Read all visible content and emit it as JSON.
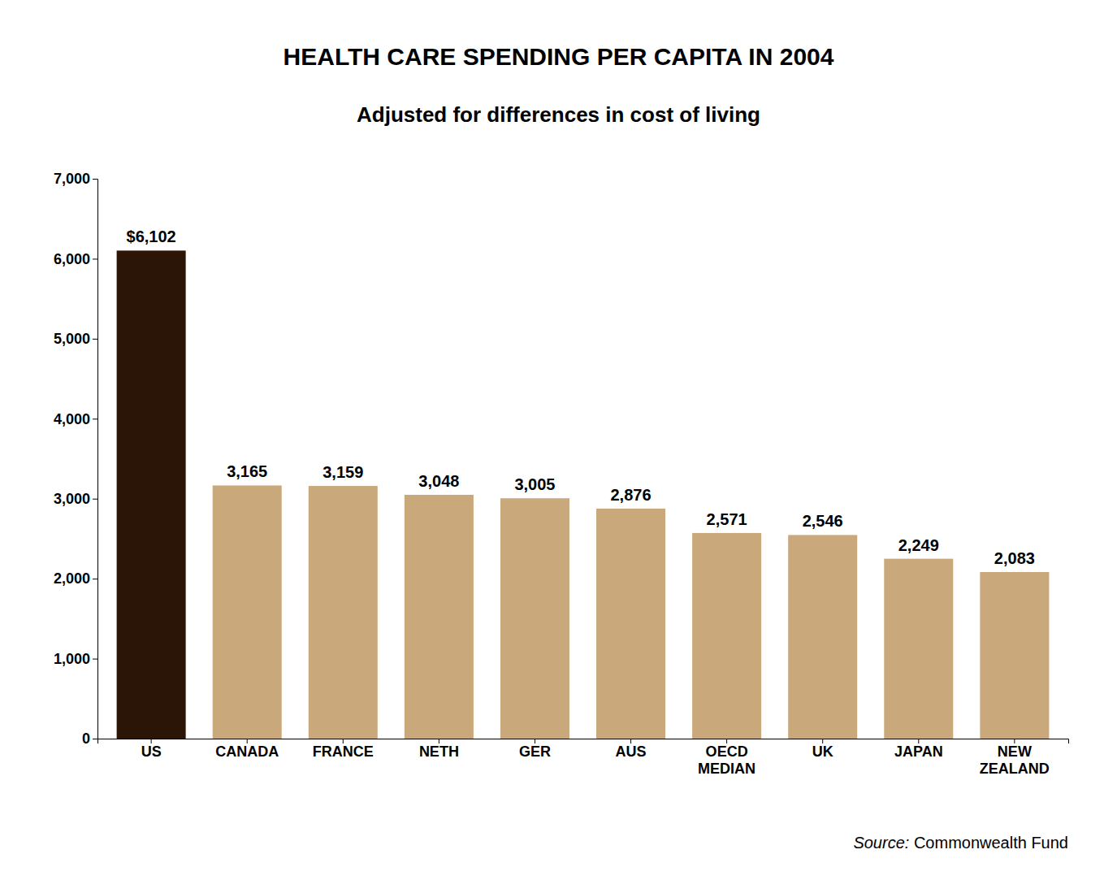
{
  "chart_data": {
    "type": "bar",
    "title": "HEALTH CARE SPENDING PER CAPITA IN 2004",
    "subtitle": "Adjusted for differences in cost of living",
    "categories": [
      "US",
      "CANADA",
      "FRANCE",
      "NETH",
      "GER",
      "AUS",
      "OECD\nMEDIAN",
      "UK",
      "JAPAN",
      "NEW\nZEALAND"
    ],
    "values": [
      6102,
      3165,
      3159,
      3048,
      3005,
      2876,
      2571,
      2546,
      2249,
      2083
    ],
    "value_labels": [
      "$6,102",
      "3,165",
      "3,159",
      "3,048",
      "3,005",
      "2,876",
      "2,571",
      "2,546",
      "2,249",
      "2,083"
    ],
    "colors": [
      "#2b1507",
      "#c9a87c",
      "#c9a87c",
      "#c9a87c",
      "#c9a87c",
      "#c9a87c",
      "#c9a87c",
      "#c9a87c",
      "#c9a87c",
      "#c9a87c"
    ],
    "ylim": [
      0,
      7000
    ],
    "yticks": [
      0,
      {
        "value": 1000,
        "label": "1,000"
      },
      {
        "value": 2000,
        "label": "2,000"
      },
      {
        "value": 3000,
        "label": "3,000"
      },
      {
        "value": 4000,
        "label": "4,000"
      },
      {
        "value": 5000,
        "label": "5,000"
      },
      {
        "value": 6000,
        "label": "6,000"
      },
      {
        "value": 7000,
        "label": "7,000"
      }
    ],
    "annotations": [
      "Source:",
      " Commonwealth Fund"
    ],
    "grid": false,
    "data_labels": true
  }
}
